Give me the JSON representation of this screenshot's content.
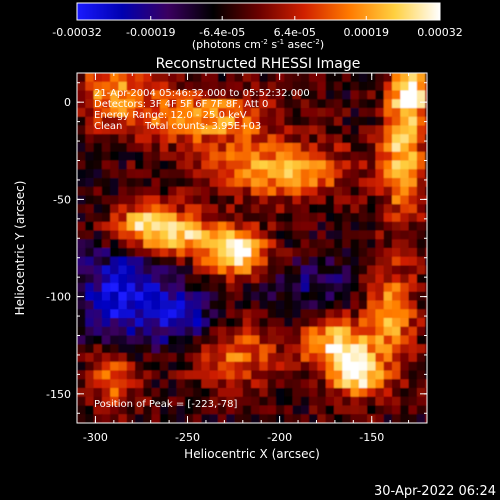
{
  "chart_data": {
    "type": "heatmap",
    "title": "Reconstructed RHESSI Image",
    "xlabel": "Heliocentric X (arcsec)",
    "ylabel": "Heliocentric Y (arcsec)",
    "xlim": [
      -310,
      -120
    ],
    "ylim": [
      -165,
      15
    ],
    "x_ticks": [
      "-300",
      "-250",
      "-200",
      "-150"
    ],
    "x_tick_values": [
      -300,
      -250,
      -200,
      -150
    ],
    "y_ticks": [
      "0",
      "-50",
      "-100",
      "-150"
    ],
    "y_tick_values": [
      0,
      -50,
      -100,
      -150
    ],
    "colorbar": {
      "range": [
        -0.00032,
        0.00032
      ],
      "ticks": [
        "-0.00032",
        "-0.00019",
        "-6.4e-05",
        "6.4e-05",
        "0.00019",
        "0.00032"
      ],
      "tick_values": [
        -0.00032,
        -0.00019,
        -6.4e-05,
        6.4e-05,
        0.00019,
        0.00032
      ],
      "unit_label": "(photons cm",
      "unit_exp1": "-2",
      "unit_mid1": " s",
      "unit_exp2": "-1",
      "unit_mid2": " asec",
      "unit_exp3": "-2",
      "unit_end": ")",
      "colors": [
        "#1a1aff",
        "#0000b0",
        "#3a0060",
        "#000000",
        "#6a0000",
        "#d02000",
        "#ff7a00",
        "#ffd040",
        "#ffffff"
      ]
    },
    "peak": {
      "x": -223,
      "y": -78,
      "value": 0.00032
    },
    "sources": [
      {
        "x": -223,
        "y": -78,
        "intensity": 1.0,
        "sx": 12,
        "sy": 8
      },
      {
        "x": -255,
        "y": -68,
        "intensity": 0.75,
        "sx": 20,
        "sy": 8
      },
      {
        "x": -170,
        "y": -125,
        "intensity": 0.85,
        "sx": 12,
        "sy": 10
      },
      {
        "x": -158,
        "y": -140,
        "intensity": 0.9,
        "sx": 9,
        "sy": 8
      },
      {
        "x": -140,
        "y": -110,
        "intensity": 0.65,
        "sx": 10,
        "sy": 20
      },
      {
        "x": -133,
        "y": -25,
        "intensity": 0.8,
        "sx": 8,
        "sy": 25
      },
      {
        "x": -128,
        "y": 5,
        "intensity": 0.9,
        "sx": 6,
        "sy": 8
      },
      {
        "x": -200,
        "y": -35,
        "intensity": 0.7,
        "sx": 28,
        "sy": 10
      },
      {
        "x": -240,
        "y": -8,
        "intensity": 0.65,
        "sx": 25,
        "sy": 10
      },
      {
        "x": -290,
        "y": 5,
        "intensity": 0.6,
        "sx": 15,
        "sy": 12
      },
      {
        "x": -275,
        "y": -62,
        "intensity": 0.55,
        "sx": 12,
        "sy": 8
      },
      {
        "x": -290,
        "y": -140,
        "intensity": 0.6,
        "sx": 10,
        "sy": 12
      },
      {
        "x": -225,
        "y": -130,
        "intensity": 0.5,
        "sx": 18,
        "sy": 12
      },
      {
        "x": -285,
        "y": -100,
        "intensity": -0.7,
        "sx": 18,
        "sy": 18
      },
      {
        "x": -250,
        "y": -112,
        "intensity": -0.5,
        "sx": 12,
        "sy": 10
      },
      {
        "x": -180,
        "y": -95,
        "intensity": -0.3,
        "sx": 20,
        "sy": 10
      }
    ]
  },
  "annotations": {
    "time_range": "21-Apr-2004 05:46:32.000 to 05:52:32.000",
    "detectors": "Detectors: 3F 4F 5F 6F 7F 8F, Att 0",
    "energy": "Energy Range: 12.0 - 25.0 keV",
    "clean": "Clean",
    "counts": "Total counts: 3.95E+03",
    "peak_label": "Position of Peak = [-223,-78]"
  },
  "footer": {
    "date": "30-Apr-2022 06:24"
  }
}
